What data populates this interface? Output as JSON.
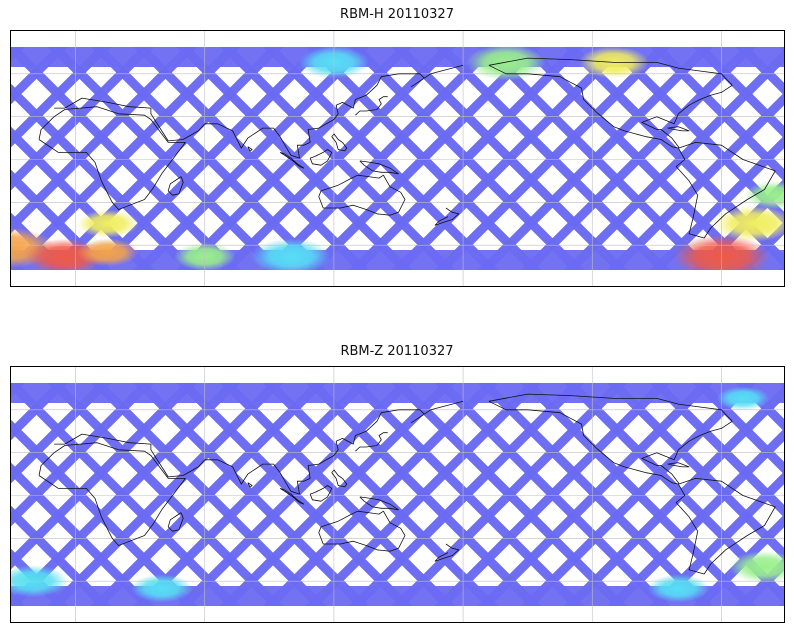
{
  "maps": [
    {
      "id": "rbm-h",
      "title": "RBM-H 20110327",
      "colors": {
        "base": "#6a6af2",
        "mid": "#5fa8f5",
        "cyan": "#57dff4",
        "green": "#9af08c",
        "yellow": "#f1ee5e",
        "orange": "#f5a34a",
        "red": "#f05a46"
      },
      "hotspots": [
        {
          "lon": -60,
          "lat": -68,
          "level": "red",
          "radius": 22
        },
        {
          "lon": -30,
          "lat": -62,
          "level": "orange",
          "radius": 20
        },
        {
          "lon": -45,
          "lat": -45,
          "level": "yellow",
          "radius": 18
        },
        {
          "lon": -5,
          "lat": -68,
          "level": "red",
          "radius": 18
        },
        {
          "lon": 15,
          "lat": -65,
          "level": "orange",
          "radius": 14
        },
        {
          "lon": 15,
          "lat": -45,
          "level": "yellow",
          "radius": 14
        },
        {
          "lon": -35,
          "lat": -25,
          "level": "green",
          "radius": 14
        },
        {
          "lon": -160,
          "lat": 68,
          "level": "green",
          "radius": 18
        },
        {
          "lon": -110,
          "lat": 68,
          "level": "yellow",
          "radius": 16
        },
        {
          "lon": 120,
          "lat": 68,
          "level": "cyan",
          "radius": 16
        },
        {
          "lon": 100,
          "lat": -68,
          "level": "cyan",
          "radius": 18
        },
        {
          "lon": 60,
          "lat": -68,
          "level": "green",
          "radius": 14
        }
      ]
    },
    {
      "id": "rbm-z",
      "title": "RBM-Z 20110327",
      "colors": {
        "base": "#6a6af2",
        "mid": "#5fa8f5",
        "cyan": "#57dff4",
        "green": "#9af08c",
        "yellow": "#f1ee5e",
        "orange": "#f5a34a",
        "red": "#f05a46"
      },
      "hotspots": [
        {
          "lon": -40,
          "lat": -50,
          "level": "green",
          "radius": 16
        },
        {
          "lon": -20,
          "lat": -60,
          "level": "cyan",
          "radius": 16
        },
        {
          "lon": -80,
          "lat": -65,
          "level": "cyan",
          "radius": 14
        },
        {
          "lon": 40,
          "lat": -65,
          "level": "cyan",
          "radius": 14
        },
        {
          "lon": -50,
          "lat": 68,
          "level": "cyan",
          "radius": 12
        }
      ]
    }
  ]
}
